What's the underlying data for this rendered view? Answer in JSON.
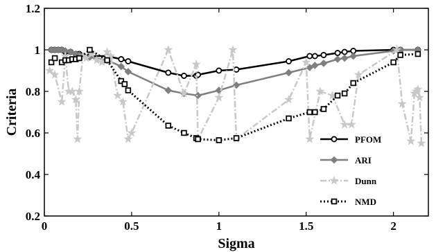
{
  "chart_data": {
    "type": "line",
    "xlabel": "Sigma",
    "ylabel": "Criteria",
    "xlim": [
      0,
      2.2
    ],
    "ylim": [
      0.2,
      1.2
    ],
    "xticks": [
      0,
      0.5,
      1,
      1.5,
      2
    ],
    "xtick_labels": [
      "0",
      "0.5",
      "1",
      "1.5",
      "2"
    ],
    "yticks": [
      0.2,
      0.4,
      0.6,
      0.8,
      1.0,
      1.2
    ],
    "ytick_labels": [
      "0.2",
      "0.4",
      "0.6",
      "0.8",
      "1",
      "1.2"
    ],
    "grid": false,
    "legend_position": "lower-right",
    "series": [
      {
        "name": "PFOM",
        "color": "#000000",
        "line": "solid",
        "marker": "circle",
        "x": [
          0.04,
          0.06,
          0.08,
          0.1,
          0.12,
          0.15,
          0.18,
          0.2,
          0.26,
          0.36,
          0.44,
          0.48,
          0.71,
          0.8,
          0.87,
          0.88,
          1.0,
          1.1,
          1.4,
          1.52,
          1.55,
          1.6,
          1.68,
          1.72,
          1.77,
          2.0,
          2.04,
          2.14
        ],
        "y": [
          1.0,
          1.0,
          1.0,
          1.0,
          0.99,
          0.99,
          0.98,
          0.98,
          0.97,
          0.97,
          0.955,
          0.945,
          0.89,
          0.875,
          0.875,
          0.88,
          0.9,
          0.905,
          0.945,
          0.97,
          0.97,
          0.975,
          0.985,
          0.99,
          0.995,
          1.0,
          1.0,
          1.0
        ]
      },
      {
        "name": "ARI",
        "color": "#7f7f7f",
        "line": "solid",
        "marker": "diamond",
        "x": [
          0.04,
          0.06,
          0.08,
          0.1,
          0.12,
          0.15,
          0.18,
          0.2,
          0.26,
          0.36,
          0.44,
          0.48,
          0.71,
          0.8,
          0.88,
          1.0,
          1.1,
          1.4,
          1.52,
          1.55,
          1.6,
          1.68,
          1.72,
          1.77,
          2.0,
          2.04,
          2.14
        ],
        "y": [
          1.0,
          1.0,
          1.0,
          1.0,
          0.995,
          0.99,
          0.98,
          0.975,
          0.965,
          0.95,
          0.92,
          0.895,
          0.805,
          0.79,
          0.78,
          0.805,
          0.83,
          0.89,
          0.915,
          0.925,
          0.935,
          0.955,
          0.96,
          0.97,
          0.995,
          1.0,
          1.0
        ]
      },
      {
        "name": "Dunn",
        "color": "#c8c8c8",
        "line": "dashdot",
        "marker": "star",
        "x": [
          0.03,
          0.06,
          0.1,
          0.12,
          0.14,
          0.16,
          0.18,
          0.19,
          0.2,
          0.22,
          0.24,
          0.27,
          0.3,
          0.33,
          0.36,
          0.38,
          0.42,
          0.45,
          0.48,
          0.5,
          0.71,
          0.8,
          0.87,
          0.88,
          1.0,
          1.08,
          1.1,
          1.4,
          1.5,
          1.52,
          1.58,
          1.65,
          1.72,
          1.76,
          1.8,
          2.02,
          2.05,
          2.1,
          2.12,
          2.13,
          2.14,
          2.15,
          2.16
        ],
        "y": [
          0.9,
          0.88,
          0.75,
          0.97,
          0.8,
          0.8,
          0.76,
          0.57,
          0.8,
          0.97,
          0.96,
          0.98,
          0.95,
          0.94,
          0.99,
          0.97,
          0.78,
          0.75,
          0.57,
          0.6,
          1.0,
          0.79,
          0.93,
          0.57,
          0.77,
          1.0,
          0.57,
          0.76,
          0.94,
          0.57,
          0.8,
          0.78,
          0.64,
          0.64,
          0.88,
          1.0,
          0.74,
          0.56,
          0.79,
          0.8,
          0.81,
          0.77,
          0.55
        ]
      },
      {
        "name": "NMD",
        "color": "#000000",
        "line": "dotted",
        "marker": "square",
        "x": [
          0.04,
          0.06,
          0.1,
          0.12,
          0.14,
          0.16,
          0.18,
          0.2,
          0.26,
          0.36,
          0.44,
          0.46,
          0.48,
          0.71,
          0.8,
          0.87,
          0.88,
          1.0,
          1.1,
          1.4,
          1.52,
          1.55,
          1.6,
          1.68,
          1.72,
          1.77,
          2.0,
          2.04,
          2.14
        ],
        "y": [
          0.94,
          0.96,
          0.94,
          0.95,
          0.95,
          0.955,
          0.955,
          0.96,
          1.0,
          0.95,
          0.85,
          0.835,
          0.805,
          0.635,
          0.6,
          0.575,
          0.57,
          0.565,
          0.575,
          0.67,
          0.7,
          0.7,
          0.715,
          0.78,
          0.79,
          0.84,
          0.94,
          0.975,
          0.98
        ]
      }
    ]
  }
}
